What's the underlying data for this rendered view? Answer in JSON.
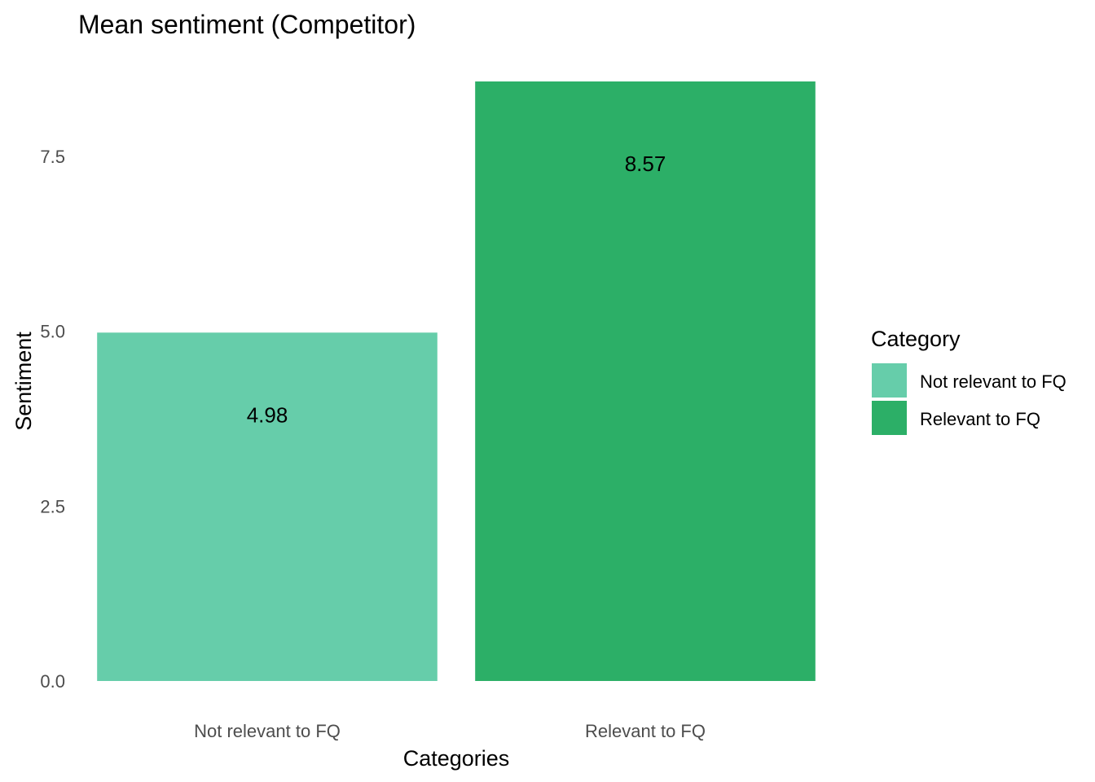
{
  "chart_data": {
    "type": "bar",
    "title": "Mean sentiment (Competitor)",
    "xlabel": "Categories",
    "ylabel": "Sentiment",
    "categories": [
      "Not relevant to FQ",
      "Relevant to FQ"
    ],
    "values": [
      4.98,
      8.57
    ],
    "data_labels": [
      "4.98",
      "8.57"
    ],
    "colors": [
      "#66cdaa",
      "#2caf67"
    ],
    "ylim": [
      0,
      8.57
    ],
    "yticks": [
      0,
      2.5,
      5,
      7.5
    ],
    "ytick_labels": [
      "0.0",
      "2.5",
      "5.0",
      "7.5"
    ],
    "grid": false,
    "legend": {
      "title": "Category",
      "position": "right",
      "entries": [
        "Not relevant to FQ",
        "Relevant to FQ"
      ]
    }
  }
}
